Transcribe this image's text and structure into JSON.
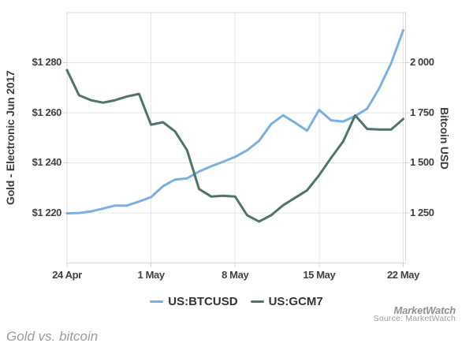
{
  "chart_data": {
    "type": "line",
    "x_unit": "days since 24 Apr 2017",
    "x": [
      0,
      1,
      2,
      3,
      4,
      5,
      6,
      7,
      8,
      9,
      10,
      11,
      12,
      13,
      14,
      15,
      16,
      17,
      18,
      19,
      20,
      21,
      22,
      23,
      24,
      25,
      26,
      27,
      28
    ],
    "xlim": [
      0,
      28.2
    ],
    "grid": true,
    "legend_position": "bottom-center",
    "x_ticks": [
      {
        "pos": 0,
        "label": "24 Apr"
      },
      {
        "pos": 7,
        "label": "1 May"
      },
      {
        "pos": 14,
        "label": "8 May"
      },
      {
        "pos": 21,
        "label": "15 May"
      },
      {
        "pos": 28,
        "label": "22 May"
      }
    ],
    "y_axis_left": {
      "title": "Gold - Electronic Jun 2017",
      "ylim": [
        1200,
        1300
      ],
      "ticks": [
        {
          "value": 1280,
          "label": "$1 280"
        },
        {
          "value": 1260,
          "label": "$1 260"
        },
        {
          "value": 1240,
          "label": "$1 240"
        },
        {
          "value": 1220,
          "label": "$1 220"
        }
      ]
    },
    "y_axis_right": {
      "title": "Bitcoin USD",
      "ylim": [
        1000,
        2250
      ],
      "ticks": [
        {
          "value": 2000,
          "label": "2 000"
        },
        {
          "value": 1750,
          "label": "1 750"
        },
        {
          "value": 1500,
          "label": "1 500"
        },
        {
          "value": 1250,
          "label": "1 250"
        }
      ]
    },
    "series": [
      {
        "name": "US:BTCUSD",
        "axis": "right",
        "color": "#7aafe4",
        "values": [
          1247,
          1249,
          1257,
          1271,
          1286,
          1286,
          1306,
          1328,
          1383,
          1416,
          1422,
          1456,
          1482,
          1505,
          1529,
          1562,
          1610,
          1693,
          1737,
          1700,
          1660,
          1764,
          1712,
          1706,
          1733,
          1770,
          1872,
          1998,
          2162
        ]
      },
      {
        "name": "US:GCM7",
        "axis": "left",
        "color": "#4f7466",
        "values": [
          1277,
          1267,
          1265,
          1264,
          1265,
          1266.5,
          1267.5,
          1255.2,
          1256.2,
          1252.5,
          1245,
          1229.5,
          1226.5,
          1226.8,
          1226.5,
          1219,
          1216.5,
          1219,
          1223,
          1226,
          1229,
          1235,
          1242,
          1248.5,
          1258.9,
          1253.5,
          1253.3,
          1253.3,
          1257.5
        ]
      }
    ]
  },
  "legend": {
    "items": [
      {
        "label": "US:BTCUSD",
        "color": "#7aafe4"
      },
      {
        "label": "US:GCM7",
        "color": "#4f7466"
      }
    ]
  },
  "branding": {
    "logo_text": "MarketWatch",
    "source_text": "Source: MarketWatch"
  },
  "caption": {
    "text": "Gold vs. bitcoin"
  },
  "colors": {
    "grid": "#e6e6e6",
    "plot_border": "#d9d9d9",
    "tick": "#d0d0d0",
    "axis_label": "#404040",
    "legend_text": "#333333",
    "caption_text": "#9b9b9b",
    "source_text": "#9c9c9c",
    "background": "#ffffff"
  }
}
